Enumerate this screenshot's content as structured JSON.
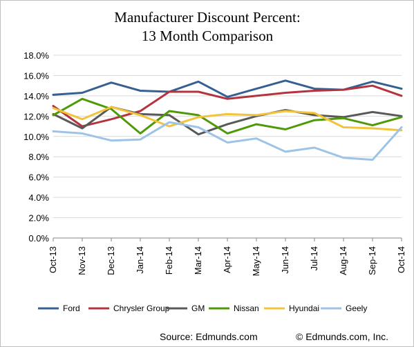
{
  "chart_data": {
    "type": "line",
    "title_lines": [
      "Manufacturer Discount Percent:",
      "13 Month Comparison"
    ],
    "categories": [
      "Oct-13",
      "Nov-13",
      "Dec-13",
      "Jan-14",
      "Feb-14",
      "Mar-14",
      "Apr-14",
      "May-14",
      "Jun-14",
      "Jul-14",
      "Aug-14",
      "Sep-14",
      "Oct-14"
    ],
    "ylim": [
      0,
      18
    ],
    "yticks": [
      0,
      2,
      4,
      6,
      8,
      10,
      12,
      14,
      16,
      18
    ],
    "ytick_labels": [
      "0.0%",
      "2.0%",
      "4.0%",
      "6.0%",
      "8.0%",
      "10.0%",
      "12.0%",
      "14.0%",
      "16.0%",
      "18.0%"
    ],
    "grid": true,
    "legend_position": "bottom",
    "series": [
      {
        "name": "Ford",
        "color": "#376092",
        "values": [
          14.1,
          14.3,
          15.3,
          14.5,
          14.4,
          15.4,
          13.9,
          14.7,
          15.5,
          14.7,
          14.6,
          15.4,
          14.7
        ]
      },
      {
        "name": "Chrysler Group",
        "color": "#b3343e",
        "values": [
          13.0,
          11.0,
          11.7,
          12.5,
          14.4,
          14.4,
          13.7,
          14.0,
          14.3,
          14.5,
          14.6,
          15.0,
          14.0
        ]
      },
      {
        "name": "GM",
        "color": "#595959",
        "values": [
          12.2,
          10.8,
          12.9,
          12.2,
          12.1,
          10.2,
          11.2,
          12.0,
          12.6,
          12.1,
          11.9,
          12.4,
          12.0
        ]
      },
      {
        "name": "Nissan",
        "color": "#4e9a06",
        "values": [
          12.1,
          13.7,
          12.7,
          10.3,
          12.5,
          12.1,
          10.3,
          11.2,
          10.7,
          11.6,
          11.8,
          11.1,
          11.9
        ]
      },
      {
        "name": "Hyundai",
        "color": "#f2c43c",
        "values": [
          12.8,
          11.7,
          12.9,
          12.1,
          11.0,
          11.9,
          12.2,
          12.1,
          12.5,
          12.3,
          10.9,
          10.8,
          10.6
        ]
      },
      {
        "name": "Geely",
        "color": "#9dc3e6",
        "values": [
          10.5,
          10.3,
          9.6,
          9.7,
          11.4,
          10.9,
          9.4,
          9.8,
          8.5,
          8.9,
          7.9,
          7.7,
          10.9
        ]
      }
    ]
  },
  "footer": {
    "source": "Source: Edmunds.com",
    "copyright": "© Edmunds.com, Inc."
  }
}
